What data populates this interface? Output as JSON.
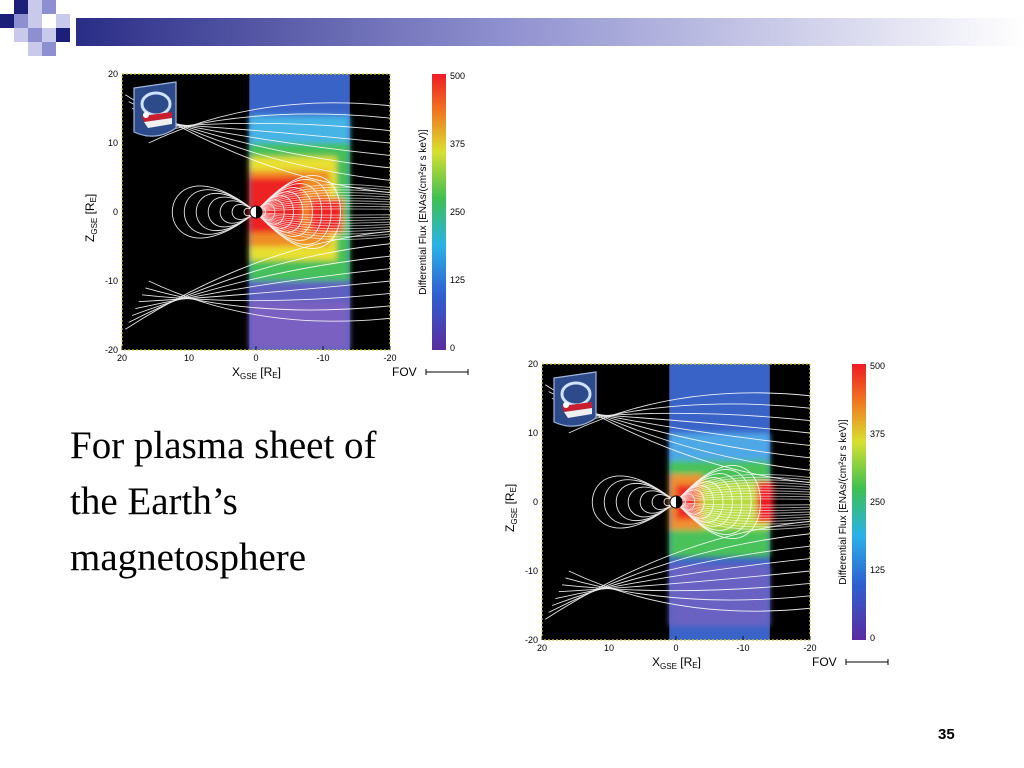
{
  "slide": {
    "text_lines": [
      "For plasma sheet of",
      "the Earth’s",
      "magnetosphere"
    ],
    "page_number": "35",
    "accent_colors": {
      "navy": "#1b1f7a",
      "periwinkle": "#8e8fd0",
      "lavender": "#c9c9ec"
    }
  },
  "figures": [
    {
      "x_ticks": [
        "20",
        "10",
        "0",
        "-10",
        "-20"
      ],
      "z_ticks": [
        "20",
        "10",
        "0",
        "-10",
        "-20"
      ],
      "x_axis_label": "X",
      "x_axis_sub": "GSE",
      "x_axis_unit": "[R",
      "x_axis_unit_sub": "E",
      "x_axis_unit_end": "]",
      "z_axis_label": "Z",
      "z_axis_sub": "GSE",
      "z_axis_unit": "[R",
      "z_axis_unit_sub": "E",
      "z_axis_unit_end": "]",
      "fov_label": "FOV",
      "colorbar_ticks": [
        "500",
        "375",
        "250",
        "125",
        "0"
      ],
      "colorbar_label": "Differential Flux [ENAs/(cm²sr s keV)]",
      "logo": "IBEX mission logo",
      "variant": "tail-heavy"
    },
    {
      "x_ticks": [
        "20",
        "10",
        "0",
        "-10",
        "-20"
      ],
      "z_ticks": [
        "20",
        "10",
        "0",
        "-10",
        "-20"
      ],
      "x_axis_label": "X",
      "x_axis_sub": "GSE",
      "x_axis_unit": "[R",
      "x_axis_unit_sub": "E",
      "x_axis_unit_end": "]",
      "z_axis_label": "Z",
      "z_axis_sub": "GSE",
      "z_axis_unit": "[R",
      "z_axis_unit_sub": "E",
      "z_axis_unit_end": "]",
      "fov_label": "FOV",
      "colorbar_ticks": [
        "500",
        "375",
        "250",
        "125",
        "0"
      ],
      "colorbar_label": "Differential Flux [ENAs/(cm²sr s keV)]",
      "logo": "IBEX mission logo",
      "variant": "sheet-extended"
    }
  ]
}
